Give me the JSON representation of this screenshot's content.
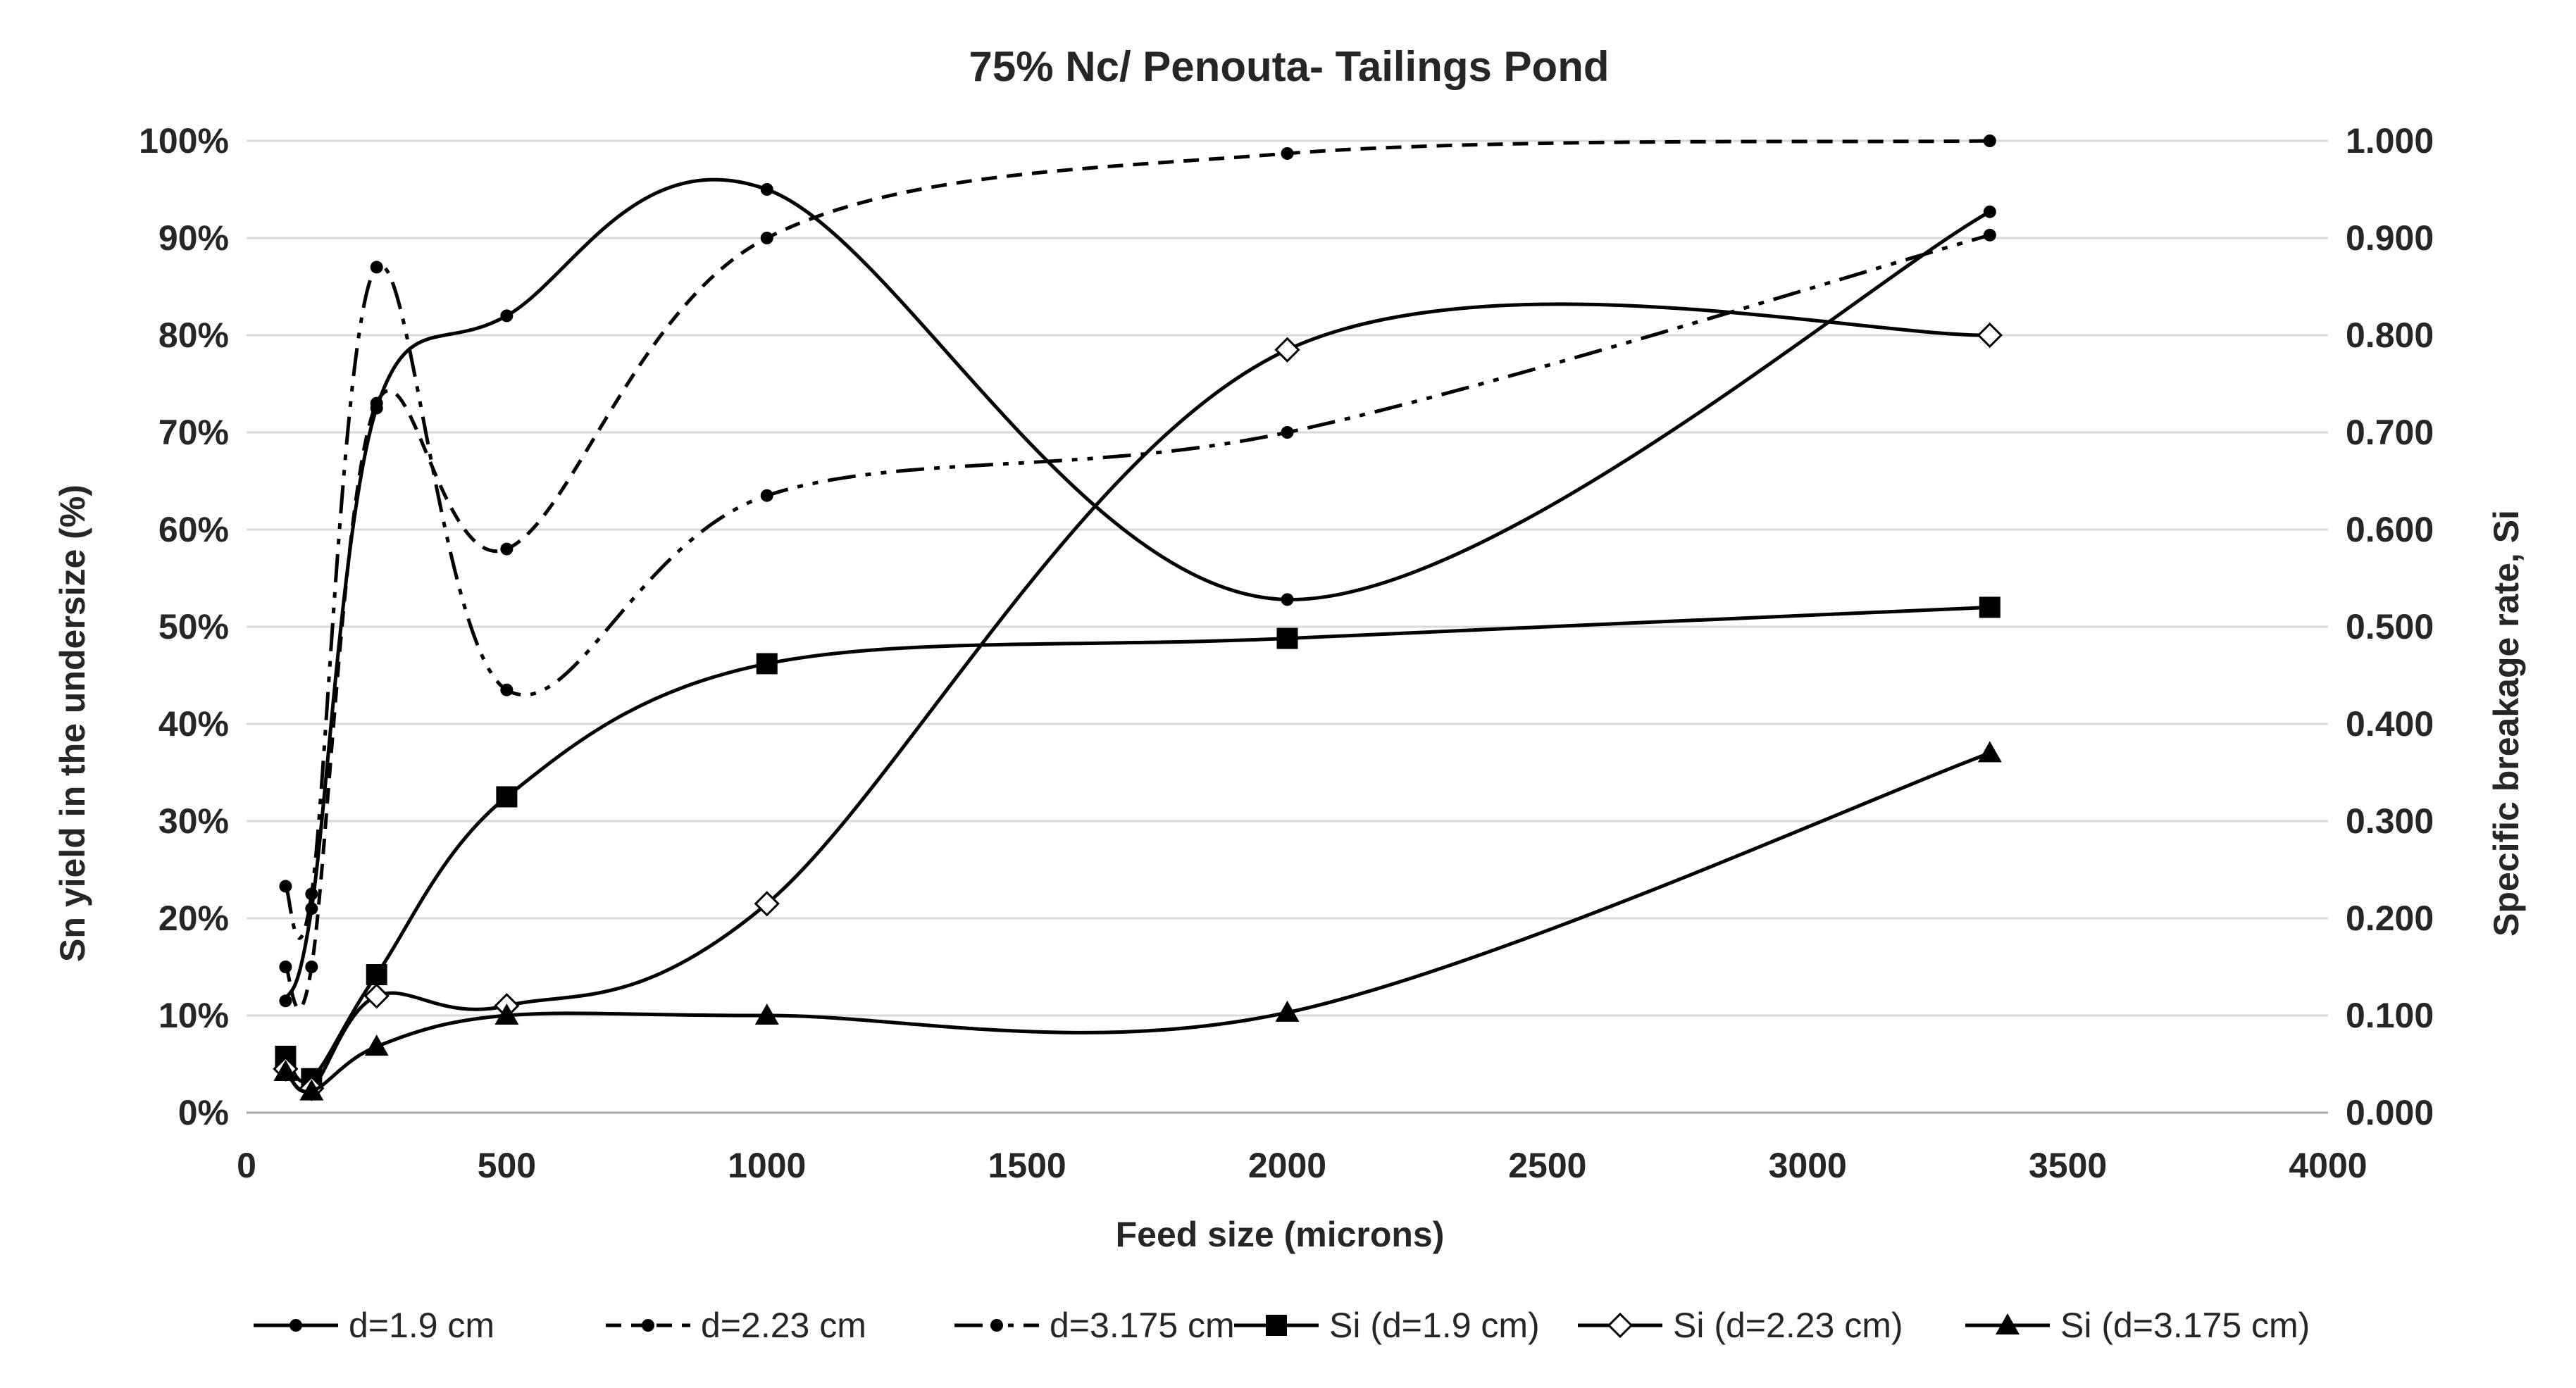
{
  "chart_data": {
    "type": "line",
    "title": "75% Nc/ Penouta- Tailings Pond",
    "xlabel": "Feed size (microns)",
    "ylabel": "Sn yield in the undersize (%)",
    "y2label": "Specific breakage rate, Si",
    "xlim": [
      0,
      4000
    ],
    "ylim": [
      0,
      100
    ],
    "y2lim": [
      0,
      1
    ],
    "x_ticks": [
      "0",
      "500",
      "1000",
      "1500",
      "2000",
      "2500",
      "3000",
      "3500",
      "4000"
    ],
    "y_ticks": [
      "0%",
      "10%",
      "20%",
      "30%",
      "40%",
      "50%",
      "60%",
      "70%",
      "80%",
      "90%",
      "100%"
    ],
    "y2_ticks": [
      "0.000",
      "0.100",
      "0.200",
      "0.300",
      "0.400",
      "0.500",
      "0.600",
      "0.700",
      "0.800",
      "0.900",
      "1.000"
    ],
    "grid": true,
    "legend_position": "bottom",
    "series": [
      {
        "name": "d=1.9 cm",
        "axis": "left",
        "marker": "dot",
        "dash": "solid",
        "x": [
          75,
          125,
          250,
          500,
          1000,
          2000,
          3350
        ],
        "y": [
          11.5,
          21,
          72.5,
          82,
          95,
          52.8,
          92.7
        ]
      },
      {
        "name": "d=2.23 cm",
        "axis": "left",
        "marker": "dot",
        "dash": "dash",
        "x": [
          75,
          125,
          250,
          500,
          1000,
          2000,
          3350
        ],
        "y": [
          15,
          15,
          73,
          58,
          90,
          98.7,
          100
        ]
      },
      {
        "name": "d=3.175 cm",
        "axis": "left",
        "marker": "dot",
        "dash": "dashdotdot",
        "x": [
          75,
          125,
          250,
          500,
          1000,
          2000,
          3350
        ],
        "y": [
          23.3,
          22.5,
          87,
          43.5,
          63.5,
          70,
          90.3
        ]
      },
      {
        "name": "Si (d=1.9 cm)",
        "axis": "right",
        "marker": "square",
        "dash": "solid",
        "x": [
          75,
          125,
          250,
          500,
          1000,
          2000,
          3350
        ],
        "y": [
          0.058,
          0.035,
          0.142,
          0.325,
          0.462,
          0.488,
          0.52
        ]
      },
      {
        "name": "Si (d=2.23 cm)",
        "axis": "right",
        "marker": "diamond",
        "dash": "solid",
        "x": [
          75,
          125,
          250,
          500,
          1000,
          2000,
          3350
        ],
        "y": [
          0.045,
          0.025,
          0.12,
          0.11,
          0.215,
          0.785,
          0.8
        ]
      },
      {
        "name": "Si (d=3.175 cm)",
        "axis": "right",
        "marker": "triangle",
        "dash": "solid",
        "x": [
          75,
          125,
          250,
          500,
          1000,
          2000,
          3350
        ],
        "y": [
          0.042,
          0.022,
          0.068,
          0.1,
          0.1,
          0.103,
          0.37
        ]
      }
    ]
  }
}
